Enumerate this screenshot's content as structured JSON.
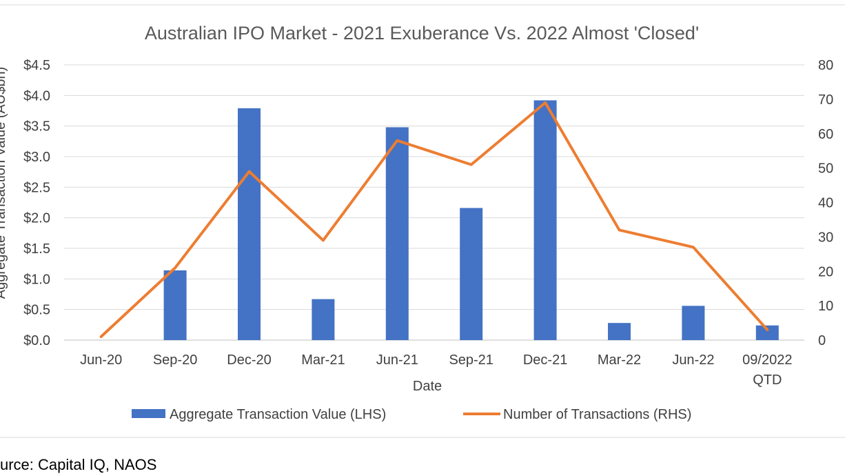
{
  "chart_data": {
    "type": "bar",
    "title": "Australian IPO Market - 2021 Exuberance Vs. 2022 Almost 'Closed'",
    "xlabel": "Date",
    "ylabel": "Aggregate Transaction Value (AU$bn)",
    "categories": [
      [
        "Jun-20"
      ],
      [
        "Sep-20"
      ],
      [
        "Dec-20"
      ],
      [
        "Mar-21"
      ],
      [
        "Jun-21"
      ],
      [
        "Sep-21"
      ],
      [
        "Dec-21"
      ],
      [
        "Mar-22"
      ],
      [
        "Jun-22"
      ],
      [
        "09/2022",
        "QTD"
      ]
    ],
    "ylim": [
      0,
      4.5
    ],
    "y2lim": [
      0,
      80
    ],
    "yticks": [
      "$0.0",
      "$0.5",
      "$1.0",
      "$1.5",
      "$2.0",
      "$2.5",
      "$3.0",
      "$3.5",
      "$4.0",
      "$4.5"
    ],
    "y2ticks": [
      "0",
      "10",
      "20",
      "30",
      "40",
      "50",
      "60",
      "70",
      "80"
    ],
    "grid": true,
    "legend_position": "bottom",
    "series": [
      {
        "name": "Aggregate Transaction Value (LHS)",
        "type": "bar",
        "axis": "left",
        "color": "#4472C4",
        "values": [
          0,
          1.14,
          3.79,
          0.67,
          3.48,
          2.16,
          3.92,
          0.28,
          0.56,
          0.24
        ]
      },
      {
        "name": "Number of Transactions (RHS)",
        "type": "line",
        "axis": "right",
        "color": "#ED7D31",
        "values": [
          1,
          21,
          49,
          29,
          58,
          51,
          69,
          32,
          27,
          3
        ]
      }
    ]
  },
  "source_note": "urce: Capital IQ, NAOS"
}
